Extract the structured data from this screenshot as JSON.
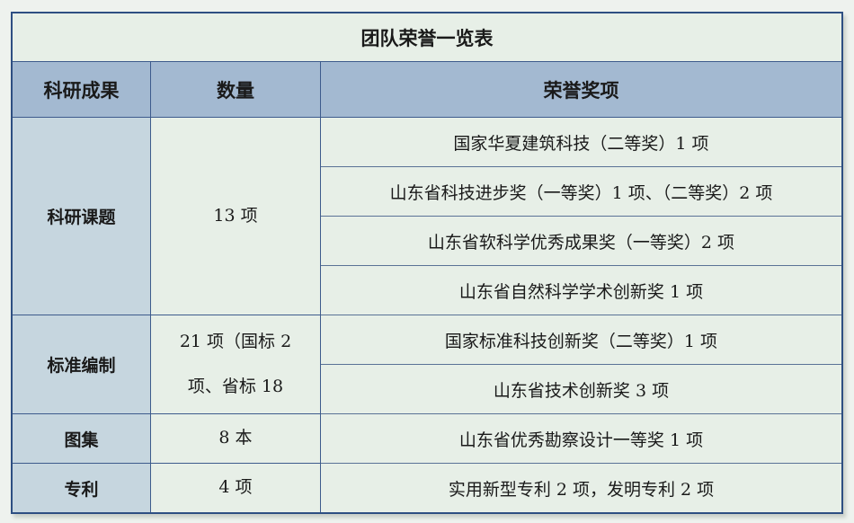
{
  "title": "团队荣誉一览表",
  "headers": [
    "科研成果",
    "数量",
    "荣誉奖项"
  ],
  "groups": [
    {
      "category": "科研课题",
      "quantity": "13 项",
      "honors": [
        "国家华夏建筑科技（二等奖）1 项",
        "山东省科技进步奖（一等奖）1 项、（二等奖）2 项",
        "山东省软科学优秀成果奖（一等奖）2 项",
        "山东省自然科学学术创新奖 1  项"
      ]
    },
    {
      "category": "标准编制",
      "quantity": "21 项（国标 2 项、省标 18",
      "honors": [
        "国家标准科技创新奖（二等奖）1 项",
        "山东省技术创新奖 3 项"
      ]
    },
    {
      "category": "图集",
      "quantity": "8 本",
      "honors": [
        "山东省优秀勘察设计一等奖 1 项"
      ]
    },
    {
      "category": "专利",
      "quantity": "4 项",
      "honors": [
        "实用新型专利 2 项，发明专利 2 项"
      ]
    }
  ]
}
